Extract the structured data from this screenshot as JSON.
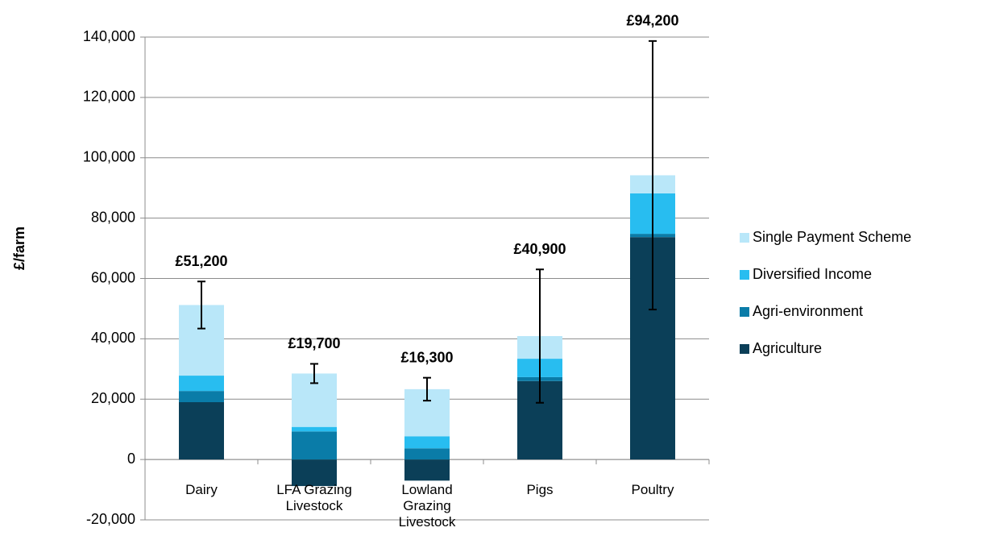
{
  "chart_data": {
    "type": "stacked_bar",
    "y_label": "£/farm",
    "categories": [
      "Dairy",
      "LFA Grazing Livestock",
      "Lowland Grazing Livestock",
      "Pigs",
      "Poultry"
    ],
    "series": [
      {
        "name": "Agriculture",
        "color": "#0b3f58",
        "values": [
          19000,
          -8800,
          -7000,
          26000,
          73700
        ]
      },
      {
        "name": "Agri-environment",
        "color": "#0a7ca8",
        "values": [
          3700,
          9300,
          3700,
          1300,
          1100
        ]
      },
      {
        "name": "Diversified Income",
        "color": "#28bdf0",
        "values": [
          5100,
          1500,
          4000,
          6100,
          13400
        ]
      },
      {
        "name": "Single Payment Scheme",
        "color": "#b9e7f9",
        "values": [
          23400,
          17700,
          15600,
          7500,
          6000
        ]
      }
    ],
    "totals": [
      51200,
      19700,
      16300,
      40900,
      94200
    ],
    "total_labels": [
      "£51,200",
      "£19,700",
      "£16,300",
      "£40,900",
      "£94,200"
    ],
    "errors": [
      7800,
      3200,
      3800,
      22100,
      44500
    ],
    "ylim": [
      -20000,
      140000
    ],
    "yticks": [
      {
        "value": -20000,
        "label": "-20,000"
      },
      0,
      {
        "value": 20000,
        "label": "20,000"
      },
      {
        "value": 40000,
        "label": "40,000"
      },
      {
        "value": 60000,
        "label": "60,000"
      },
      {
        "value": 80000,
        "label": "80,000"
      },
      {
        "value": 100000,
        "label": "100,000"
      },
      {
        "value": 120000,
        "label": "120,000"
      },
      {
        "value": 140000,
        "label": "140,000"
      }
    ],
    "grid": true,
    "legend": "right"
  }
}
